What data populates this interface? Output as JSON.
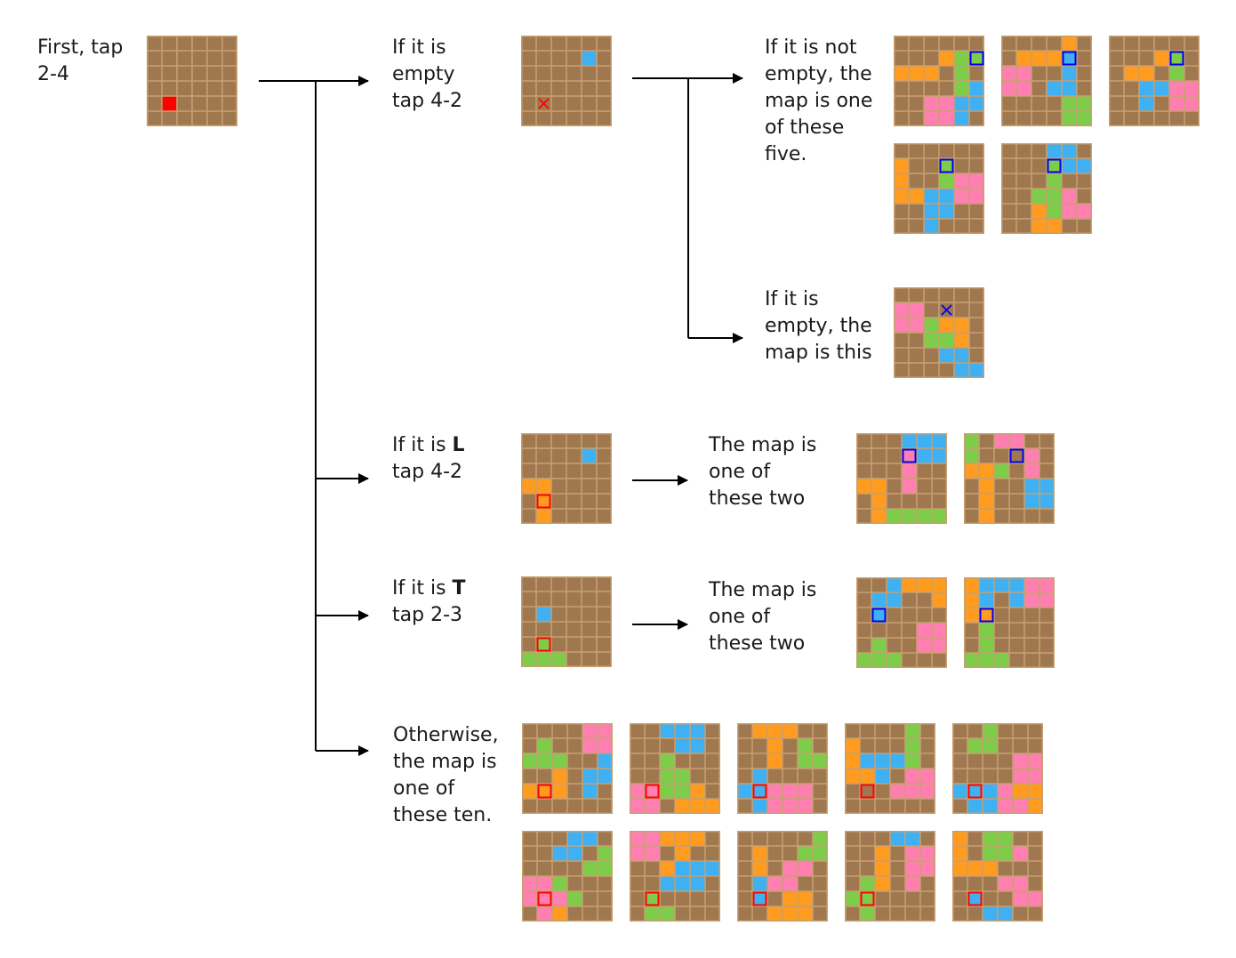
{
  "colors": {
    "background": "#a0784f",
    "gridline": "#c8a070",
    "orange": "#ff9b1f",
    "green": "#7dcc4a",
    "blue": "#3fb0f2",
    "pink": "#ff7fb0",
    "red": "#ff0000",
    "marker_blue": "#0000ee",
    "arrow": "#000000"
  },
  "labels": {
    "first": [
      "First, tap",
      "2-4"
    ],
    "empty": [
      "If it is",
      "empty",
      "tap 4-2"
    ],
    "not_empty": [
      "If it is not",
      "empty, the",
      "map is one",
      "of these",
      "five."
    ],
    "empty_this": [
      "If it is",
      "empty, the",
      "map is this"
    ],
    "if_l_prefix": "If it is ",
    "if_l_letter": "L",
    "if_l_tap": "tap 4-2",
    "if_t_prefix": "If it is ",
    "if_t_letter": "T",
    "if_t_tap": "tap 2-3",
    "l_result": [
      "The map is",
      "one of",
      "these two"
    ],
    "t_result": [
      "The map is",
      "one of",
      "these two"
    ],
    "otherwise": [
      "Otherwise,",
      "the map is",
      "one of",
      "these ten."
    ]
  },
  "boards": {
    "start": {
      "cells": "......|......|......|......|.R....|......"
    },
    "empty_tap": {
      "cells": "......|....B.|......|......|.x....|......"
    },
    "five_1": {
      "cells": "......|...OGG|OOO.G.|....GB|..PPBB|..PPB.",
      "hl": [
        1,
        5,
        "marker_blue"
      ]
    },
    "five_2": {
      "cells": "....O.|.OOOB.|PP..B.|PP.BB.|....GG|....GG",
      "hl": [
        1,
        4,
        "marker_blue"
      ]
    },
    "five_3": {
      "cells": "......|...OG.|.OO.G.|..BBPP|..B.PP|......",
      "hl": [
        1,
        4,
        "marker_blue"
      ]
    },
    "five_4": {
      "cells": "......|O..G..|O..GPP|OOBBPP|..BB..|..B...",
      "hl": [
        1,
        3,
        "marker_blue"
      ]
    },
    "five_5": {
      "cells": "...BB.|...GBB|...G..|..GGP.|..OGPP|..OO..",
      "hl": [
        1,
        3,
        "marker_blue"
      ]
    },
    "empty_result": {
      "cells": "......|PP.x..|PPGOO.|..GGO.|...BB.|....BB"
    },
    "l_tap": {
      "cells": "......|....B.|......|OO....|.O....|.O....",
      "hl": [
        4,
        1,
        "red"
      ]
    },
    "l_1": {
      "cells": "...BBB|...PBB|...P..|OO.P..|.O....|.OGGGG",
      "hl": [
        1,
        3,
        "marker_blue"
      ]
    },
    "l_2": {
      "cells": "G.PP..|G...P.|OOG.P.|.O..BB|.O..BB|.O....",
      "hl": [
        1,
        3,
        "marker_blue"
      ]
    },
    "t_tap": {
      "cells": "......|......|.B....|......|.G....|GGG...",
      "hl": [
        4,
        1,
        "red"
      ]
    },
    "t_1": {
      "cells": "..BOOO|.BB..O|.B....|....PP|.G..PP|GGG...",
      "hl": [
        2,
        1,
        "marker_blue"
      ]
    },
    "t_2": {
      "cells": "OBBBPP|OB.BPP|OO....|.G....|.G....|GGG...",
      "hl": [
        2,
        1,
        "marker_blue"
      ]
    },
    "ten_1": {
      "cells": "....PP|.G..PP|GGG..B|..O.BB|OOO.B.|......",
      "hl": [
        4,
        1,
        "red"
      ]
    },
    "ten_2": {
      "cells": "..BBB.|...BB.|..G...|..GG..|PPGGO.|PP.OOO",
      "hl": [
        4,
        1,
        "red"
      ]
    },
    "ten_3": {
      "cells": ".OOO..|..O.G.|..O.GG|.B....|BBPPP.|.BPPP.",
      "hl": [
        4,
        1,
        "red"
      ]
    },
    "ten_4": {
      "cells": "....G.|O...G.|OBBBG.|OOB.PP|...PPP|......",
      "hl": [
        4,
        1,
        "red"
      ]
    },
    "ten_5": {
      "cells": "..G...|.GG...|....PP|....PP|BBBPOO|.BBPPO",
      "hl": [
        4,
        1,
        "red"
      ]
    },
    "ten_6": {
      "cells": "...BB.|..BB.GG|....GG|PPG...|PPPG..|.PO...",
      "hl": [
        4,
        1,
        "red"
      ]
    },
    "ten_7": {
      "cells": "PPOOO.|PP.O..|..OBBB|..BBB.|.G....|.GG...",
      "hl": [
        4,
        1,
        "red"
      ]
    },
    "ten_8": {
      "cells": ".....G|.O..GG|.O.PP.|.BPP..|.B.OO.|..OOO.",
      "hl": [
        4,
        1,
        "red"
      ]
    },
    "ten_9": {
      "cells": "...BB.|..O.PP|..O.PP|.GO.P.|GG....|.G....",
      "hl": [
        4,
        1,
        "red"
      ]
    },
    "ten_10": {
      "cells": "O.GG..|O.GGP.|OOO...|...PP.|.B..PP|..BB..",
      "hl": [
        4,
        1,
        "red"
      ]
    }
  }
}
